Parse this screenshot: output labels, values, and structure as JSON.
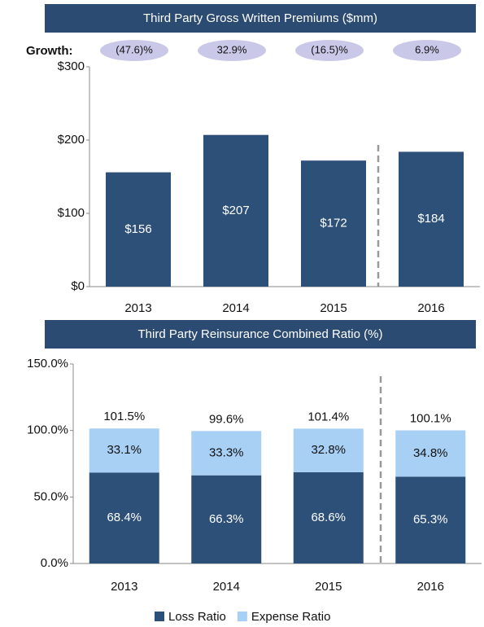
{
  "chart_data": [
    {
      "type": "bar",
      "title": "Third Party Gross Written Premiums ($mm)",
      "growth_label": "Growth:",
      "growth": [
        "(47.6)%",
        "32.9%",
        "(16.5)%",
        "6.9%"
      ],
      "categories": [
        "2013",
        "2014",
        "2015",
        "2016"
      ],
      "values": [
        156,
        207,
        172,
        184
      ],
      "value_labels": [
        "$156",
        "$207",
        "$172",
        "$184"
      ],
      "color": "#2d5078",
      "ylim": [
        0,
        300
      ],
      "yticks": [
        {
          "value": 0,
          "label": "$0"
        },
        {
          "value": 100,
          "label": "$100"
        },
        {
          "value": 200,
          "label": "$200"
        },
        {
          "value": 300,
          "label": "$300"
        }
      ]
    },
    {
      "type": "stacked_bar",
      "title": "Third Party Reinsurance Combined Ratio (%)",
      "categories": [
        "2013",
        "2014",
        "2015",
        "2016"
      ],
      "series": [
        {
          "name": "Loss Ratio",
          "color": "#2d5078",
          "values": [
            68.4,
            66.3,
            68.6,
            65.3
          ],
          "value_labels": [
            "68.4%",
            "66.3%",
            "68.6%",
            "65.3%"
          ]
        },
        {
          "name": "Expense Ratio",
          "color": "#a8d0f5",
          "values": [
            33.1,
            33.3,
            32.8,
            34.8
          ],
          "value_labels": [
            "33.1%",
            "33.3%",
            "32.8%",
            "34.8%"
          ]
        }
      ],
      "totals": [
        101.5,
        99.6,
        101.4,
        100.1
      ],
      "total_labels": [
        "101.5%",
        "99.6%",
        "101.4%",
        "100.1%"
      ],
      "ylim": [
        0,
        150
      ],
      "yticks": [
        {
          "value": 0,
          "label": "0.0%"
        },
        {
          "value": 50,
          "label": "50.0%"
        },
        {
          "value": 100,
          "label": "100.0%"
        },
        {
          "value": 150,
          "label": "150.0%"
        }
      ],
      "legend": "bottom"
    }
  ]
}
